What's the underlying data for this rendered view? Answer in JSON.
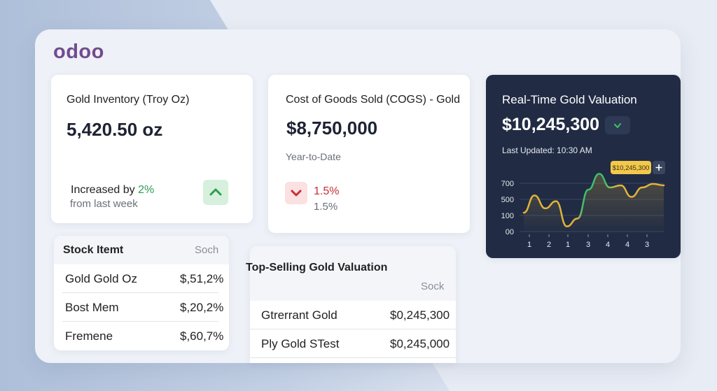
{
  "app": {
    "logo_text": "odoo"
  },
  "inventory_card": {
    "title": "Gold Inventory (Troy Oz)",
    "value": "5,420.50 oz",
    "change_prefix": "Increased by ",
    "change_pct": "2%",
    "change_sub": "from last week",
    "trend_icon": "chevron-up-icon"
  },
  "cogs_card": {
    "title": "Cost of Goods Sold (COGS) - Gold",
    "value": "$8,750,000",
    "period": "Year-to-Date",
    "change_pct": "1.5%",
    "change_pct_secondary": "1.5%",
    "trend_icon": "chevron-down-icon"
  },
  "valuation_card": {
    "title": "Real-Time Gold Valuation",
    "value": "$10,245,300",
    "status_icon": "check-icon",
    "last_updated": "Last Updated: 10:30 AM",
    "tooltip": "$10,245,300",
    "tooltip_icon": "plus-icon"
  },
  "stock_table": {
    "col_item": "Stock Itemt",
    "col_stock": "Soch",
    "rows": [
      {
        "name": "Gold Gold Oz",
        "value": "$,51,2%"
      },
      {
        "name": "Bost Mem",
        "value": "$,20,2%"
      },
      {
        "name": "Fremene",
        "value": "$,60,7%"
      }
    ]
  },
  "top_selling": {
    "title": "Top-Selling Gold Valuation",
    "col_stock": "Sock",
    "rows": [
      {
        "name": "Gtrerrant Gold",
        "value": "$0,245,300"
      },
      {
        "name": "Ply Gold STest",
        "value": "$0,245,000"
      }
    ]
  },
  "colors": {
    "brand": "#714b8f",
    "positive": "#2e9d4f",
    "negative": "#c62f36",
    "dark_card": "#212c44",
    "line_gold": "#e2b33a",
    "line_green": "#3fbf6a"
  },
  "chart_data": {
    "type": "line",
    "y_tick_labels": [
      "700",
      "500",
      "100",
      "00"
    ],
    "x_tick_labels": [
      "1",
      "2",
      "1",
      "3",
      "4",
      "4",
      "3"
    ],
    "series": [
      {
        "values": [
          300,
          540,
          360,
          460,
          110,
          220,
          620,
          840,
          650,
          680,
          520,
          650,
          700,
          680
        ]
      }
    ],
    "highlight_label": "$10,245,300",
    "grid": true
  }
}
